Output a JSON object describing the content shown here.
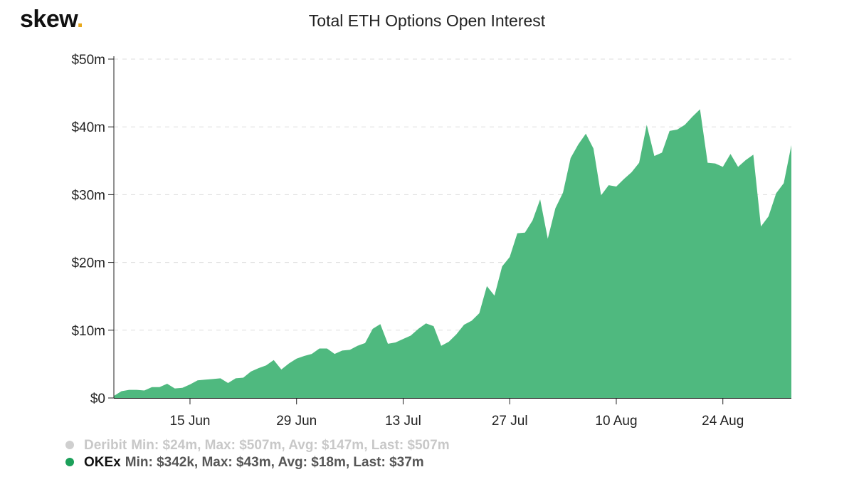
{
  "logo": {
    "text": "skew",
    "dot": "."
  },
  "colors": {
    "okex": "#4fb97f",
    "deribit_bullet": "#cfcfcf",
    "okex_bullet": "#1ca05a",
    "grid": "#dddddd",
    "logo_dot": "#e8a81c"
  },
  "chart_data": {
    "type": "area",
    "title": "Total ETH Options Open Interest",
    "xlabel": "",
    "ylabel": "",
    "ylim": [
      0,
      50
    ],
    "y_unit": "$m",
    "y_ticks": [
      "$0",
      "$10m",
      "$20m",
      "$30m",
      "$40m",
      "$50m"
    ],
    "x_ticks": [
      "15 Jun",
      "29 Jun",
      "13 Jul",
      "27 Jul",
      "10 Aug",
      "24 Aug"
    ],
    "x_start": "2020-06-05",
    "grid": "horizontal dashed",
    "legend_position": "bottom-left",
    "series": [
      {
        "name": "OKEx",
        "values": [
          0.3,
          1.0,
          1.2,
          1.2,
          1.1,
          1.6,
          1.6,
          2.1,
          1.4,
          1.5,
          2.0,
          2.6,
          2.7,
          2.8,
          2.9,
          2.2,
          2.9,
          3.0,
          3.9,
          4.4,
          4.8,
          5.6,
          4.2,
          5.1,
          5.8,
          6.2,
          6.5,
          7.3,
          7.3,
          6.5,
          7.0,
          7.1,
          7.7,
          8.1,
          10.2,
          10.9,
          8.0,
          8.2,
          8.7,
          9.2,
          10.2,
          11.0,
          10.6,
          7.7,
          8.3,
          9.4,
          10.8,
          11.4,
          12.5,
          16.5,
          15.1,
          19.4,
          20.8,
          24.3,
          24.4,
          26.2,
          29.3,
          23.5,
          28.0,
          30.3,
          35.4,
          37.4,
          39.0,
          36.8,
          29.9,
          31.4,
          31.2,
          32.3,
          33.3,
          34.7,
          40.3,
          35.7,
          36.2,
          39.4,
          39.6,
          40.3,
          41.5,
          42.6,
          34.7,
          34.6,
          34.1,
          36.0,
          34.1,
          35.1,
          35.9,
          25.3,
          26.8,
          30.2,
          31.7,
          37.3
        ]
      }
    ],
    "legend": [
      {
        "name": "Deribit",
        "stats": "Min: $24m, Max: $507m, Avg: $147m, Last: $507m",
        "active": false
      },
      {
        "name": "OKEx",
        "stats": "Min: $342k, Max: $43m, Avg: $18m, Last: $37m",
        "active": true
      }
    ]
  }
}
